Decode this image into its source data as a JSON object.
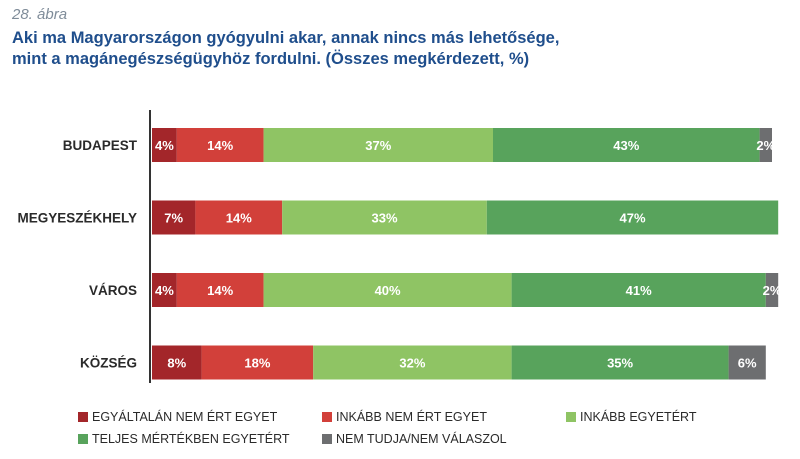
{
  "figure_label": "28. ábra",
  "title_line1": "Aki ma Magyarországon gyógyulni akar, annak nincs más lehetősége,",
  "title_line2": "mint a magánegészségügyhöz fordulni. (Összes megkérdezett, %)",
  "chart_data": {
    "type": "bar",
    "orientation": "horizontal",
    "stacked": true,
    "categories": [
      "BUDAPEST",
      "MEGYESZÉKHELY",
      "VÁROS",
      "KÖZSÉG"
    ],
    "series": [
      {
        "name": "EGYÁLTALÁN NEM ÉRT EGYET",
        "color": "#a3262a",
        "values": [
          4,
          7,
          4,
          8
        ]
      },
      {
        "name": "INKÁBB NEM ÉRT EGYET",
        "color": "#d2403a",
        "values": [
          14,
          14,
          14,
          18
        ]
      },
      {
        "name": "INKÁBB EGYETÉRT",
        "color": "#8fc464",
        "values": [
          37,
          33,
          40,
          32
        ]
      },
      {
        "name": "TELJES MÉRTÉKBEN EGYETÉRT",
        "color": "#58a35c",
        "values": [
          43,
          47,
          41,
          35
        ]
      },
      {
        "name": "NEM TUDJA/NEM VÁLASZOL",
        "color": "#6d6e70",
        "values": [
          2,
          0,
          2,
          6
        ]
      }
    ],
    "xlim": [
      0,
      100
    ],
    "value_suffix": "%",
    "grid": false,
    "legend_position": "bottom"
  }
}
